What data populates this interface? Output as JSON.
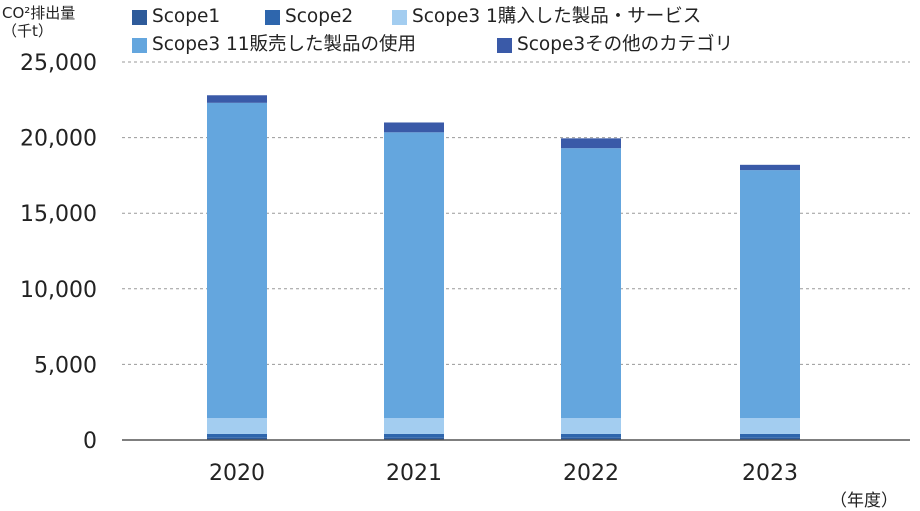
{
  "yaxis_label": "CO²排出量",
  "yaxis_unit": "（千t）",
  "xaxis_unit": "（年度）",
  "chart_data": {
    "type": "bar",
    "stacked": true,
    "categories": [
      "2020",
      "2021",
      "2022",
      "2023"
    ],
    "series": [
      {
        "name": "Scope1",
        "color": "#2e5b9a",
        "values": [
          150,
          150,
          150,
          150
        ]
      },
      {
        "name": "Scope2",
        "color": "#2e66ad",
        "values": [
          250,
          250,
          250,
          250
        ]
      },
      {
        "name": "Scope3 1購入した製品・サービス",
        "color": "#a3cdf0",
        "values": [
          1050,
          1050,
          1050,
          1050
        ]
      },
      {
        "name": "Scope3 11販売した製品の使用",
        "color": "#64a6de",
        "values": [
          20850,
          18900,
          17850,
          16400
        ]
      },
      {
        "name": "Scope3その他のカテゴリ",
        "color": "#3a5aa8",
        "values": [
          500,
          650,
          650,
          350
        ]
      }
    ],
    "yticks": [
      "0",
      "5,000",
      "10,000",
      "15,000",
      "20,000",
      "25,000"
    ],
    "ylim": [
      0,
      25000
    ],
    "grid": true,
    "legend": "top"
  }
}
